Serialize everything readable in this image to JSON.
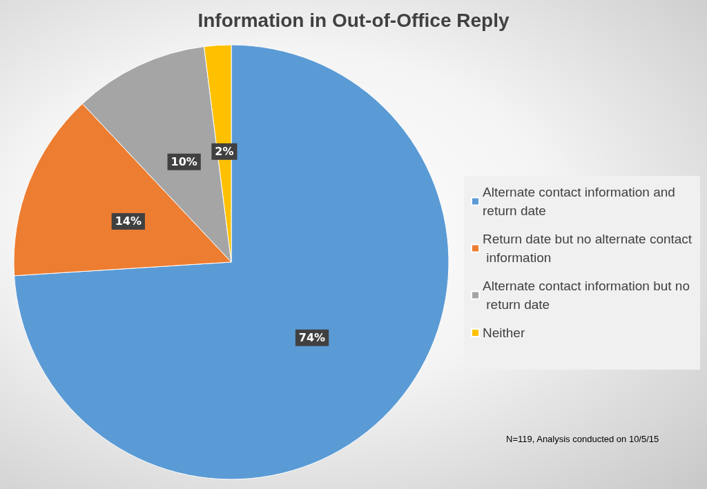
{
  "chart_data": {
    "type": "pie",
    "title": "Information in Out-of-Office Reply",
    "categories": [
      "Alternate contact information and return date",
      "Return date but no alternate contact information",
      "Alternate contact information but no return date",
      "Neither"
    ],
    "values": [
      74,
      14,
      10,
      2
    ],
    "colors": [
      "#5b9bd5",
      "#ed7d31",
      "#a5a5a5",
      "#ffc000"
    ],
    "value_labels": [
      "74%",
      "14%",
      "10%",
      "2%"
    ],
    "legend": "right",
    "annotations": [
      "N=119, Analysis conducted on 10/5/15"
    ]
  }
}
